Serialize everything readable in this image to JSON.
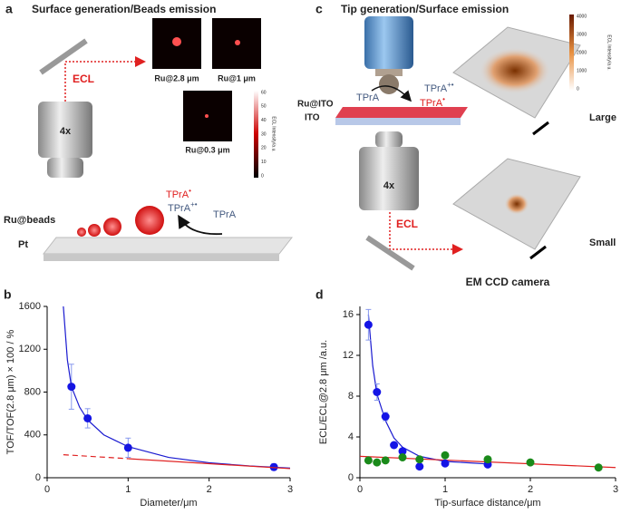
{
  "panel_a": {
    "label": "a",
    "title": "Surface generation/Beads emission",
    "ecl": "ECL",
    "magnification": "4x",
    "images": [
      "Ru@2.8 μm",
      "Ru@1 μm",
      "Ru@0.3 μm"
    ],
    "colorbar_label": "ECL Intensity/a.u.",
    "colorbar_ticks": [
      60,
      50,
      40,
      30,
      20,
      10,
      0
    ],
    "beads": "Ru@beads",
    "substrate": "Pt",
    "species": [
      {
        "text": "TPrA",
        "sup": "•"
      },
      {
        "text": "TPrA",
        "sup": "+•"
      },
      {
        "text": "TPrA"
      }
    ]
  },
  "panel_c": {
    "label": "c",
    "title": "Tip generation/Surface emission",
    "species": [
      {
        "text": "TPrA"
      },
      {
        "text": "TPrA",
        "sup": "+•"
      },
      {
        "text": "TPrA",
        "sup": "•"
      }
    ],
    "electrode": "Ru@ITO",
    "substrate": "ITO",
    "magnification": "4x",
    "ecl": "ECL",
    "sizes": [
      "Large",
      "Small"
    ],
    "camera": "EM CCD camera",
    "colorbar_label": "ECL Intensity/a.u.",
    "colorbar_ticks": [
      4000,
      3000,
      2000,
      1000,
      0
    ]
  },
  "chart_data": [
    {
      "type": "scatter",
      "panel_label": "b",
      "xlabel": "Diameter/μm",
      "ylabel": "TOF/TOF(2.8 μm) × 100 / %",
      "xlim": [
        0,
        3
      ],
      "xticks": [
        0,
        1,
        2,
        3
      ],
      "ylim": [
        0,
        1600
      ],
      "yticks": [
        0,
        400,
        800,
        1200,
        1600
      ],
      "series": [
        {
          "style": "markers",
          "color": "#1414e6",
          "x": [
            0.3,
            0.5,
            1,
            2.8
          ],
          "values": [
            850,
            555,
            280,
            100
          ],
          "errors": [
            210,
            90,
            90,
            30
          ]
        },
        {
          "style": "line",
          "color": "#1a1ad0",
          "x": [
            0.2,
            0.25,
            0.3,
            0.4,
            0.5,
            0.7,
            1,
            1.5,
            2,
            2.5,
            3
          ],
          "values": [
            1600,
            1100,
            850,
            660,
            540,
            400,
            290,
            190,
            140,
            110,
            90
          ]
        },
        {
          "style": "line",
          "dash": true,
          "color": "#e02020",
          "x": [
            0.2,
            1
          ],
          "values": [
            215,
            178
          ]
        },
        {
          "style": "line",
          "color": "#e02020",
          "x": [
            1,
            3
          ],
          "values": [
            178,
            85
          ]
        }
      ]
    },
    {
      "type": "scatter",
      "panel_label": "d",
      "xlabel": "Tip-surface distance/μm",
      "ylabel": "ECL/ECL@2.8 μm /a.u.",
      "xlim": [
        0,
        3
      ],
      "xticks": [
        0,
        1,
        2,
        3
      ],
      "ylim": [
        0,
        16.8
      ],
      "yticks": [
        0,
        4,
        8,
        12,
        16
      ],
      "series": [
        {
          "style": "line",
          "color": "#1a1ad0",
          "x": [
            0.1,
            0.15,
            0.2,
            0.3,
            0.4,
            0.5,
            0.7,
            1,
            1.5
          ],
          "values": [
            16,
            11,
            8.2,
            5.6,
            3.9,
            3.0,
            2.1,
            1.6,
            1.35
          ]
        },
        {
          "style": "line",
          "color": "#e02020",
          "x": [
            0,
            3
          ],
          "values": [
            2.1,
            1.0
          ]
        },
        {
          "style": "markers",
          "color": "#1414e6",
          "x": [
            0.1,
            0.2,
            0.3,
            0.4,
            0.5,
            0.7,
            1,
            1.5
          ],
          "values": [
            15,
            8.4,
            6,
            3.2,
            2.6,
            1.1,
            1.4,
            1.3
          ],
          "errors": [
            1.5,
            0.8,
            0.4,
            null,
            null,
            null,
            null,
            null
          ]
        },
        {
          "style": "markers",
          "color": "#1a8a1a",
          "x": [
            0.1,
            0.2,
            0.3,
            0.5,
            0.7,
            1,
            1.5,
            2,
            2.8
          ],
          "values": [
            1.7,
            1.5,
            1.7,
            2.0,
            1.8,
            2.2,
            1.8,
            1.5,
            1.0
          ]
        }
      ]
    }
  ]
}
